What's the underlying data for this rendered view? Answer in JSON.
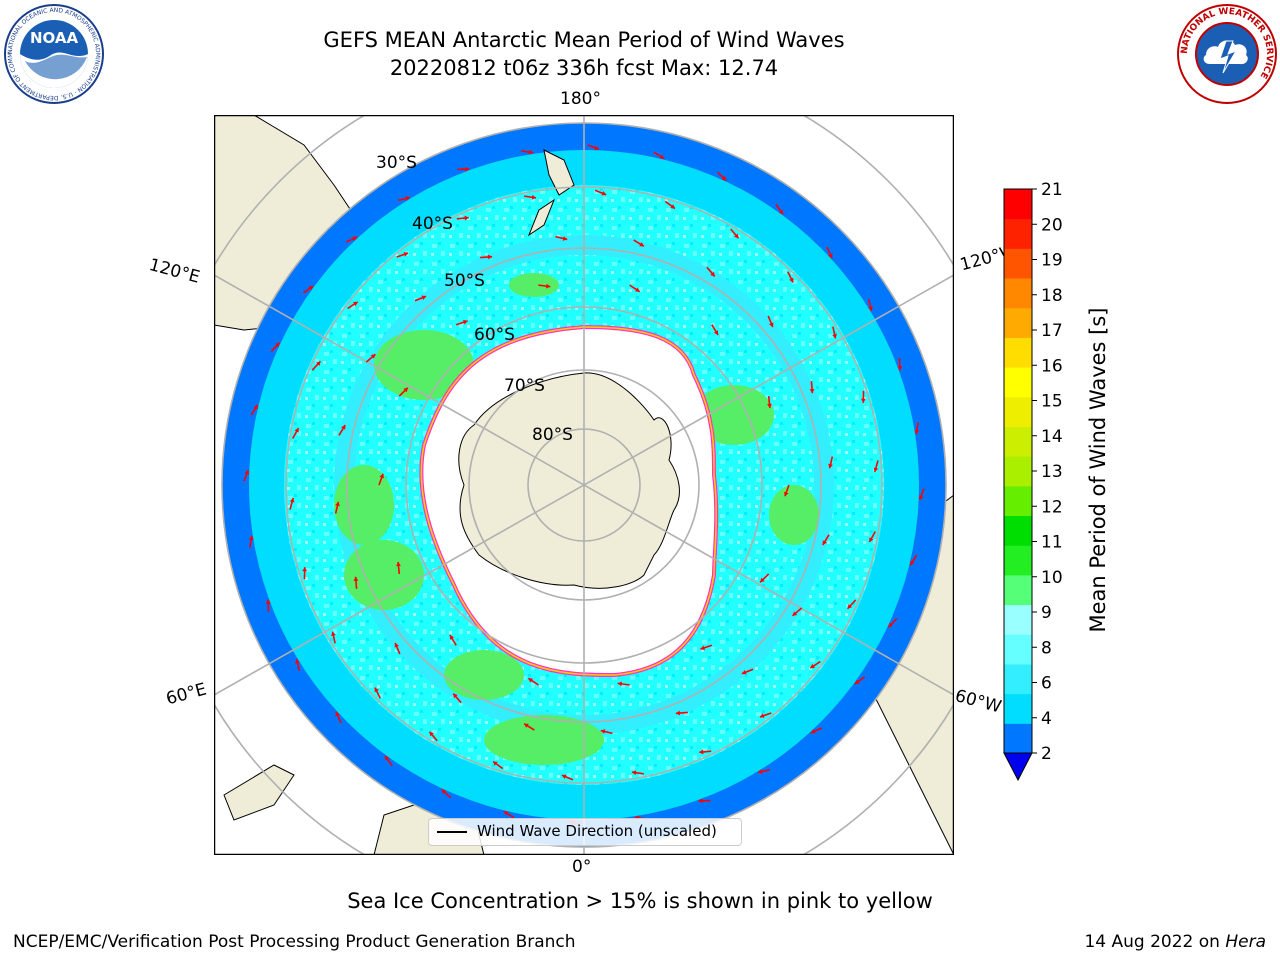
{
  "title": {
    "line1": "GEFS MEAN Antarctic Mean Period of Wind Waves",
    "line2": "20220812 t06z 336h fcst   Max: 12.74"
  },
  "logos": {
    "noaa_text": "NOAA",
    "noaa_ring_text": "NATIONAL OCEANIC AND ATMOSPHERIC ADMINISTRATION · U.S. DEPARTMENT OF COMMERCE",
    "nws_ring_text": "NATIONAL WEATHER SERVICE"
  },
  "map": {
    "projection": "south-polar-stereographic",
    "longitude_labels": {
      "top": "180°",
      "bottom": "0°",
      "upper_left": "120°E",
      "upper_right": "120°W",
      "lower_left": "60°E",
      "lower_right": "60°W"
    },
    "latitude_labels": [
      "30°S",
      "40°S",
      "50°S",
      "60°S",
      "70°S",
      "80°S"
    ],
    "legend_label": "Wind Wave Direction (unscaled)",
    "colors": {
      "land": "#efecd8",
      "sea_ice_free_interior": "#ffffff",
      "gridline": "#b0b0b0",
      "arrow": "#ff0000",
      "sea_ice_edge_pink": "#ff33cc",
      "sea_ice_edge_yellow": "#ffcc00"
    }
  },
  "colorbar": {
    "label": "Mean Period of Wind Waves [s]",
    "ticks": [
      "21",
      "20",
      "19",
      "18",
      "17",
      "16",
      "15",
      "14",
      "13",
      "12",
      "11",
      "10",
      "9",
      "8",
      "6",
      "4",
      "2"
    ],
    "colors_bottom_to_top": [
      "#0077ff",
      "#00ddff",
      "#33eeff",
      "#66ffff",
      "#99ffff",
      "#55ff77",
      "#22ee22",
      "#00dd00",
      "#66ee00",
      "#aaee00",
      "#ccee00",
      "#eeee00",
      "#ffff00",
      "#ffdd00",
      "#ffaa00",
      "#ff8800",
      "#ff5500",
      "#ff2200",
      "#ff0000"
    ],
    "under_color": "#0000ee"
  },
  "notes": {
    "sea_ice": "Sea Ice Concentration > 15% is shown in pink to yellow",
    "credit_left": "NCEP/EMC/Verification Post Processing Product Generation Branch",
    "credit_right_prefix": "14 Aug 2022 on ",
    "credit_right_machine": "Hera"
  }
}
